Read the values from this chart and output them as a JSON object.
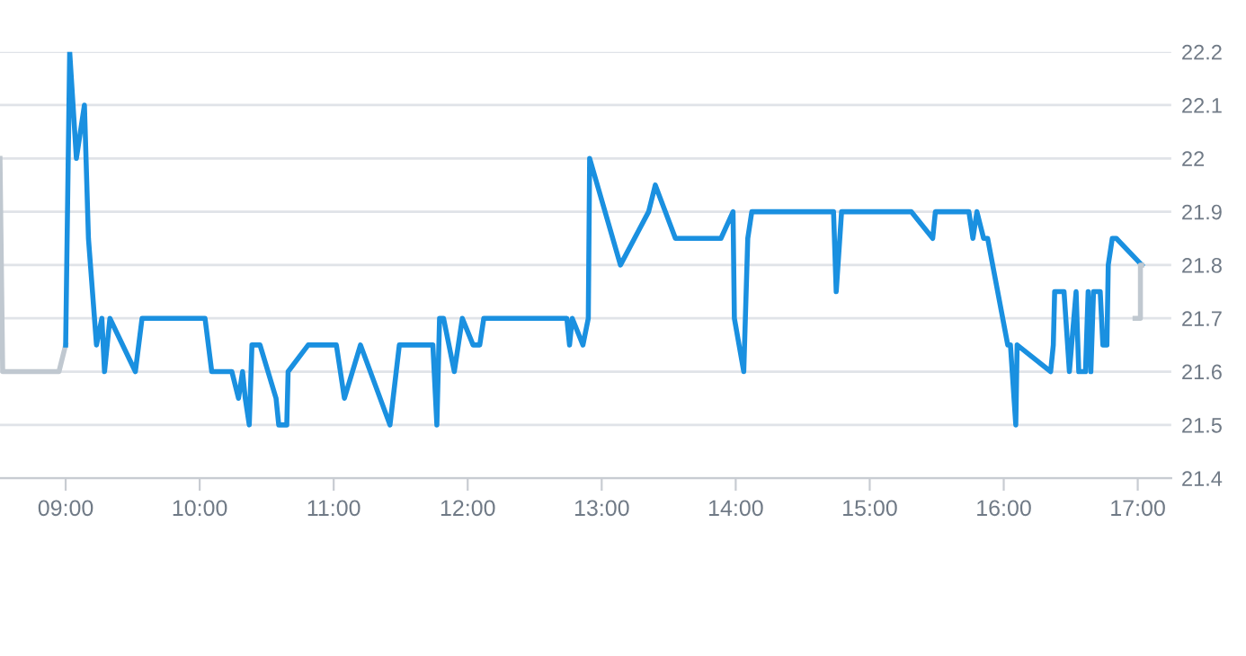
{
  "chart_data": {
    "type": "line",
    "xlim": [
      8.51,
      17.25
    ],
    "ylim": [
      21.4,
      22.2
    ],
    "xticks": [
      {
        "value": 9,
        "label": "09:00"
      },
      {
        "value": 10,
        "label": "10:00"
      },
      {
        "value": 11,
        "label": "11:00"
      },
      {
        "value": 12,
        "label": "12:00"
      },
      {
        "value": 13,
        "label": "13:00"
      },
      {
        "value": 14,
        "label": "14:00"
      },
      {
        "value": 15,
        "label": "15:00"
      },
      {
        "value": 16,
        "label": "16:00"
      },
      {
        "value": 17,
        "label": "17:00"
      }
    ],
    "yticks": [
      21.4,
      21.5,
      21.6,
      21.7,
      21.8,
      21.9,
      22,
      22.1,
      22.2
    ],
    "grid": "y",
    "marker": "none",
    "line_style": "solid",
    "series": [
      {
        "color": "#c0c8d0",
        "x": [
          8.51,
          8.53,
          8.95,
          9.0
        ],
        "values": [
          22.0,
          21.6,
          21.6,
          21.65
        ]
      },
      {
        "color": "#1a90e0",
        "x": [
          9.0,
          9.03,
          9.08,
          9.14,
          9.17,
          9.23,
          9.27,
          9.29,
          9.33,
          9.52,
          9.57,
          10.04,
          10.09,
          10.24,
          10.29,
          10.32,
          10.34,
          10.37,
          10.39,
          10.45,
          10.57,
          10.59,
          10.65,
          10.66,
          10.81,
          11.02,
          11.08,
          11.2,
          11.42,
          11.49,
          11.74,
          11.77,
          11.79,
          11.82,
          11.9,
          11.96,
          12.04,
          12.09,
          12.12,
          12.74,
          12.76,
          12.78,
          12.86,
          12.9,
          12.91,
          13.14,
          13.35,
          13.4,
          13.55,
          13.89,
          13.98,
          13.99,
          14.06,
          14.09,
          14.12,
          14.73,
          14.75,
          14.79,
          15.31,
          15.47,
          15.49,
          15.74,
          15.77,
          15.8,
          15.85,
          15.88,
          16.03,
          16.05,
          16.09,
          16.1,
          16.35,
          16.37,
          16.38,
          16.45,
          16.49,
          16.54,
          16.56,
          16.61,
          16.63,
          16.65,
          16.67,
          16.72,
          16.74,
          16.77,
          16.78,
          16.81,
          16.84,
          17.03
        ],
        "values": [
          21.65,
          22.2,
          22.0,
          22.1,
          21.85,
          21.65,
          21.7,
          21.6,
          21.7,
          21.6,
          21.7,
          21.7,
          21.6,
          21.6,
          21.55,
          21.6,
          21.55,
          21.5,
          21.65,
          21.65,
          21.55,
          21.5,
          21.5,
          21.6,
          21.65,
          21.65,
          21.55,
          21.65,
          21.5,
          21.65,
          21.65,
          21.5,
          21.7,
          21.7,
          21.6,
          21.7,
          21.65,
          21.65,
          21.7,
          21.7,
          21.65,
          21.7,
          21.65,
          21.7,
          22.0,
          21.8,
          21.9,
          21.95,
          21.85,
          21.85,
          21.9,
          21.7,
          21.6,
          21.85,
          21.9,
          21.9,
          21.75,
          21.9,
          21.9,
          21.85,
          21.9,
          21.9,
          21.85,
          21.9,
          21.85,
          21.85,
          21.65,
          21.65,
          21.5,
          21.65,
          21.6,
          21.65,
          21.75,
          21.75,
          21.6,
          21.75,
          21.6,
          21.6,
          21.75,
          21.6,
          21.75,
          21.75,
          21.65,
          21.65,
          21.8,
          21.85,
          21.85,
          21.8
        ]
      },
      {
        "color": "#c0c8d0",
        "x": [
          16.98,
          17.02,
          17.02,
          17.03
        ],
        "values": [
          21.7,
          21.7,
          21.8,
          21.8
        ]
      }
    ]
  }
}
